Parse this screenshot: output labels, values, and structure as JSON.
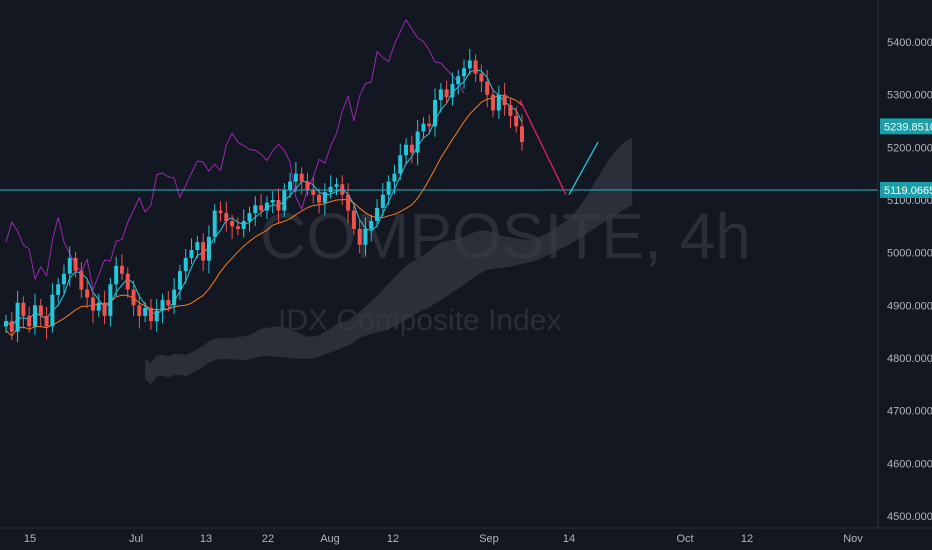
{
  "chart_data": {
    "type": "candlestick",
    "timeframe": "4h",
    "watermark": {
      "symbol": "COMPOSITE, 4h",
      "name": "IDX Composite Index"
    },
    "y_axis": {
      "range": [
        4440,
        5480
      ],
      "ticks": [
        "5400.0000",
        "5300.0000",
        "5200.0000",
        "5100.0000",
        "5000.0000",
        "4900.0000",
        "4800.0000",
        "4700.0000",
        "4600.0000",
        "4500.0000"
      ]
    },
    "x_axis": {
      "ticks": [
        "15",
        "Jul",
        "13",
        "22",
        "Aug",
        "12",
        "Sep",
        "14",
        "Oct",
        "12",
        "Nov"
      ]
    },
    "price_tags": [
      {
        "value": 5239.851,
        "label": "5239.8510",
        "color": "#1a9fa8"
      },
      {
        "value": 5119.0665,
        "label": "5119.0665",
        "color": "#1a9fa8"
      }
    ],
    "horizontal_line": {
      "value": 5119.0665,
      "color": "#24b8c3"
    },
    "candles_close": [
      4870,
      4850,
      4905,
      4880,
      4860,
      4900,
      4880,
      4860,
      4920,
      4940,
      4960,
      4990,
      4965,
      4930,
      4915,
      4890,
      4905,
      4880,
      4940,
      4975,
      4960,
      4930,
      4900,
      4880,
      4895,
      4870,
      4890,
      4910,
      4900,
      4930,
      4965,
      4990,
      5005,
      5020,
      4985,
      5030,
      5080,
      5075,
      5060,
      5050,
      5045,
      5060,
      5075,
      5090,
      5080,
      5095,
      5100,
      5080,
      5120,
      5135,
      5150,
      5135,
      5120,
      5110,
      5095,
      5115,
      5125,
      5130,
      5110,
      5080,
      5045,
      5015,
      5045,
      5060,
      5085,
      5110,
      5135,
      5150,
      5185,
      5205,
      5190,
      5230,
      5245,
      5240,
      5290,
      5310,
      5295,
      5320,
      5335,
      5350,
      5365,
      5340,
      5325,
      5300,
      5270,
      5300,
      5280,
      5260,
      5240,
      5210
    ],
    "ichimoku": {
      "conversion_color": "#26c6da",
      "base_color": "#f57c1f",
      "lagging_color": "#9c27b0",
      "cloud_fill": "#363a45"
    },
    "projection_lines": [
      {
        "color": "#e91e63",
        "from": {
          "x": "Sep",
          "y": 5290
        },
        "to": {
          "x": "14",
          "y": 5110
        }
      },
      {
        "color": "#26c6da",
        "from": {
          "x": "14",
          "y": 5110
        },
        "to": {
          "x": "14",
          "y": 5210
        }
      }
    ]
  }
}
